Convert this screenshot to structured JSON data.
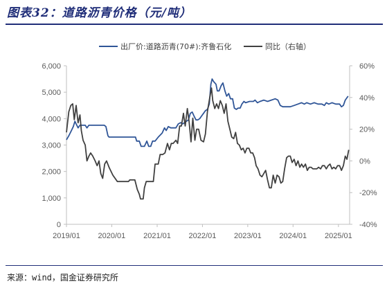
{
  "header": {
    "title": "图表32：道路沥青价格（元/吨）"
  },
  "footer": {
    "source": "来源：wind，国金证券研究所"
  },
  "colors": {
    "price": "#2f5597",
    "yoy": "#404040",
    "rule": "#1f2d78"
  },
  "chart_data": {
    "type": "line",
    "title": "图表32：道路沥青价格（元/吨）",
    "x_ticks": [
      "2019/01",
      "2020/01",
      "2021/01",
      "2022/01",
      "2023/01",
      "2024/01",
      "2025/01"
    ],
    "x_range": [
      "2019-01",
      "2025-04"
    ],
    "y_left": {
      "ticks": [
        "0",
        "1,000",
        "2,000",
        "3,000",
        "4,000",
        "5,000",
        "6,000"
      ],
      "range": [
        0,
        6000
      ]
    },
    "y_right": {
      "ticks": [
        "-40%",
        "-20%",
        "0%",
        "20%",
        "40%",
        "60%"
      ],
      "range": [
        -40,
        60
      ]
    },
    "legend_position": "top",
    "grid": false,
    "series": [
      {
        "name": "出厂价:道路沥青(70#):齐鲁石化",
        "axis": "left",
        "points": [
          [
            "2019-01-01",
            3200
          ],
          [
            "2019-01-20",
            3350
          ],
          [
            "2019-02-10",
            3550
          ],
          [
            "2019-02-25",
            3700
          ],
          [
            "2019-03-10",
            3900
          ],
          [
            "2019-03-20",
            3800
          ],
          [
            "2019-04-05",
            3650
          ],
          [
            "2019-04-20",
            3750
          ],
          [
            "2019-05-10",
            3750
          ],
          [
            "2019-06-01",
            3750
          ],
          [
            "2019-06-15",
            3650
          ],
          [
            "2019-07-01",
            3750
          ],
          [
            "2019-08-01",
            3750
          ],
          [
            "2019-09-01",
            3750
          ],
          [
            "2019-10-01",
            3750
          ],
          [
            "2019-11-01",
            3750
          ],
          [
            "2019-11-15",
            3700
          ],
          [
            "2019-12-01",
            3350
          ],
          [
            "2019-12-10",
            3300
          ],
          [
            "2020-01-15",
            3300
          ],
          [
            "2020-02-15",
            3300
          ],
          [
            "2020-03-15",
            3300
          ],
          [
            "2020-04-15",
            3300
          ],
          [
            "2020-05-15",
            3300
          ],
          [
            "2020-06-15",
            3300
          ],
          [
            "2020-07-10",
            3300
          ],
          [
            "2020-07-20",
            3150
          ],
          [
            "2020-08-10",
            3150
          ],
          [
            "2020-08-25",
            2950
          ],
          [
            "2020-09-20",
            2950
          ],
          [
            "2020-10-10",
            3150
          ],
          [
            "2020-10-25",
            2950
          ],
          [
            "2020-11-10",
            2950
          ],
          [
            "2020-11-25",
            3150
          ],
          [
            "2020-12-15",
            3150
          ],
          [
            "2021-01-10",
            3300
          ],
          [
            "2021-02-10",
            3450
          ],
          [
            "2021-03-01",
            3650
          ],
          [
            "2021-03-15",
            3550
          ],
          [
            "2021-04-01",
            3700
          ],
          [
            "2021-04-20",
            3650
          ],
          [
            "2021-05-10",
            3650
          ],
          [
            "2021-06-01",
            3650
          ],
          [
            "2021-06-20",
            3800
          ],
          [
            "2021-07-10",
            3850
          ],
          [
            "2021-07-25",
            3800
          ],
          [
            "2021-08-10",
            3850
          ],
          [
            "2021-08-25",
            3900
          ],
          [
            "2021-09-10",
            3950
          ],
          [
            "2021-09-25",
            4200
          ],
          [
            "2021-10-10",
            4250
          ],
          [
            "2021-10-25",
            4100
          ],
          [
            "2021-11-10",
            3950
          ],
          [
            "2021-11-25",
            3950
          ],
          [
            "2021-12-10",
            4000
          ],
          [
            "2021-12-25",
            4100
          ],
          [
            "2022-01-10",
            4200
          ],
          [
            "2022-01-25",
            4300
          ],
          [
            "2022-02-10",
            4350
          ],
          [
            "2022-02-25",
            4550
          ],
          [
            "2022-03-10",
            5300
          ],
          [
            "2022-03-20",
            5500
          ],
          [
            "2022-04-01",
            5400
          ],
          [
            "2022-04-20",
            5300
          ],
          [
            "2022-05-01",
            5050
          ],
          [
            "2022-05-15",
            5050
          ],
          [
            "2022-06-01",
            5250
          ],
          [
            "2022-06-15",
            5350
          ],
          [
            "2022-07-01",
            5050
          ],
          [
            "2022-07-15",
            4850
          ],
          [
            "2022-08-01",
            4950
          ],
          [
            "2022-08-15",
            4750
          ],
          [
            "2022-09-01",
            4750
          ],
          [
            "2022-09-15",
            4400
          ],
          [
            "2022-10-01",
            4350
          ],
          [
            "2022-10-15",
            4400
          ],
          [
            "2022-11-01",
            4400
          ],
          [
            "2022-11-15",
            4550
          ],
          [
            "2022-12-01",
            4650
          ],
          [
            "2022-12-15",
            4600
          ],
          [
            "2023-01-15",
            4650
          ],
          [
            "2023-02-15",
            4650
          ],
          [
            "2023-03-01",
            4700
          ],
          [
            "2023-03-20",
            4600
          ],
          [
            "2023-04-10",
            4650
          ],
          [
            "2023-05-10",
            4700
          ],
          [
            "2023-06-10",
            4650
          ],
          [
            "2023-07-10",
            4700
          ],
          [
            "2023-08-10",
            4750
          ],
          [
            "2023-09-01",
            4700
          ],
          [
            "2023-09-20",
            4500
          ],
          [
            "2023-10-10",
            4450
          ],
          [
            "2023-11-10",
            4450
          ],
          [
            "2023-12-10",
            4450
          ],
          [
            "2024-01-10",
            4500
          ],
          [
            "2024-02-10",
            4550
          ],
          [
            "2024-03-10",
            4600
          ],
          [
            "2024-04-01",
            4550
          ],
          [
            "2024-04-20",
            4600
          ],
          [
            "2024-05-20",
            4550
          ],
          [
            "2024-06-20",
            4600
          ],
          [
            "2024-07-20",
            4550
          ],
          [
            "2024-08-20",
            4550
          ],
          [
            "2024-09-10",
            4500
          ],
          [
            "2024-09-25",
            4600
          ],
          [
            "2024-10-15",
            4550
          ],
          [
            "2024-11-10",
            4600
          ],
          [
            "2024-12-10",
            4550
          ],
          [
            "2025-01-10",
            4550
          ],
          [
            "2025-01-25",
            4450
          ],
          [
            "2025-02-10",
            4500
          ],
          [
            "2025-02-25",
            4700
          ],
          [
            "2025-03-20",
            4850
          ]
        ]
      },
      {
        "name": "同比（右轴）",
        "axis": "right",
        "points": [
          [
            "2019-01-01",
            18
          ],
          [
            "2019-01-20",
            31
          ],
          [
            "2019-02-05",
            35
          ],
          [
            "2019-02-20",
            36
          ],
          [
            "2019-03-05",
            26
          ],
          [
            "2019-03-20",
            35
          ],
          [
            "2019-04-05",
            24
          ],
          [
            "2019-04-20",
            29
          ],
          [
            "2019-05-01",
            19
          ],
          [
            "2019-05-15",
            13
          ],
          [
            "2019-06-01",
            10
          ],
          [
            "2019-06-15",
            0
          ],
          [
            "2019-07-01",
            3
          ],
          [
            "2019-07-15",
            5
          ],
          [
            "2019-08-01",
            3
          ],
          [
            "2019-08-20",
            0
          ],
          [
            "2019-09-05",
            -3
          ],
          [
            "2019-09-20",
            0
          ],
          [
            "2019-10-05",
            -8
          ],
          [
            "2019-10-20",
            -11
          ],
          [
            "2019-11-05",
            -2
          ],
          [
            "2019-11-20",
            0
          ],
          [
            "2019-12-10",
            -4
          ],
          [
            "2020-01-10",
            -9
          ],
          [
            "2020-02-15",
            -13
          ],
          [
            "2020-03-15",
            -13
          ],
          [
            "2020-04-15",
            -13
          ],
          [
            "2020-05-15",
            -13
          ],
          [
            "2020-05-25",
            -12
          ],
          [
            "2020-06-15",
            -12
          ],
          [
            "2020-07-05",
            -12
          ],
          [
            "2020-07-25",
            -18
          ],
          [
            "2020-08-10",
            -21
          ],
          [
            "2020-08-20",
            -24
          ],
          [
            "2020-09-10",
            -24
          ],
          [
            "2020-09-20",
            -17
          ],
          [
            "2020-10-05",
            -13
          ],
          [
            "2020-11-01",
            -13
          ],
          [
            "2020-12-01",
            -13
          ],
          [
            "2020-12-15",
            -2
          ],
          [
            "2021-01-10",
            -2
          ],
          [
            "2021-01-25",
            4
          ],
          [
            "2021-02-15",
            4
          ],
          [
            "2021-03-05",
            5
          ],
          [
            "2021-03-25",
            11
          ],
          [
            "2021-04-10",
            7
          ],
          [
            "2021-04-25",
            11
          ],
          [
            "2021-05-10",
            11
          ],
          [
            "2021-06-01",
            13
          ],
          [
            "2021-06-15",
            11
          ],
          [
            "2021-07-01",
            22
          ],
          [
            "2021-07-15",
            22
          ],
          [
            "2021-08-01",
            30
          ],
          [
            "2021-08-15",
            22
          ],
          [
            "2021-09-01",
            33
          ],
          [
            "2021-09-15",
            25
          ],
          [
            "2021-10-01",
            12
          ],
          [
            "2021-10-15",
            27
          ],
          [
            "2021-11-01",
            13
          ],
          [
            "2021-11-15",
            20
          ],
          [
            "2021-12-01",
            20
          ],
          [
            "2021-12-20",
            13
          ],
          [
            "2022-01-10",
            12
          ],
          [
            "2022-01-25",
            17
          ],
          [
            "2022-02-10",
            31
          ],
          [
            "2022-03-01",
            40
          ],
          [
            "2022-03-15",
            46
          ],
          [
            "2022-03-25",
            38
          ],
          [
            "2022-04-10",
            33
          ],
          [
            "2022-04-25",
            36
          ],
          [
            "2022-05-10",
            33
          ],
          [
            "2022-05-25",
            38
          ],
          [
            "2022-06-10",
            35
          ],
          [
            "2022-06-25",
            30
          ],
          [
            "2022-07-10",
            36
          ],
          [
            "2022-07-25",
            25
          ],
          [
            "2022-08-10",
            20
          ],
          [
            "2022-08-25",
            15
          ],
          [
            "2022-09-10",
            14
          ],
          [
            "2022-09-25",
            18
          ],
          [
            "2022-10-10",
            11
          ],
          [
            "2022-10-25",
            10
          ],
          [
            "2022-11-10",
            7
          ],
          [
            "2022-11-25",
            8
          ],
          [
            "2022-12-10",
            5
          ],
          [
            "2022-12-25",
            8
          ],
          [
            "2023-01-10",
            8
          ],
          [
            "2023-01-25",
            5
          ],
          [
            "2023-02-10",
            5
          ],
          [
            "2023-02-25",
            2
          ],
          [
            "2023-03-10",
            -3
          ],
          [
            "2023-03-25",
            -5
          ],
          [
            "2023-04-10",
            -9
          ],
          [
            "2023-04-25",
            -10
          ],
          [
            "2023-05-10",
            -8
          ],
          [
            "2023-05-25",
            -6
          ],
          [
            "2023-06-10",
            -12
          ],
          [
            "2023-06-25",
            -17
          ],
          [
            "2023-07-10",
            -17
          ],
          [
            "2023-07-25",
            -9
          ],
          [
            "2023-08-10",
            -14
          ],
          [
            "2023-08-25",
            -9
          ],
          [
            "2023-09-10",
            -10
          ],
          [
            "2023-09-25",
            -14
          ],
          [
            "2023-10-10",
            -13
          ],
          [
            "2023-10-25",
            -5
          ],
          [
            "2023-11-10",
            2
          ],
          [
            "2023-11-25",
            3
          ],
          [
            "2023-12-10",
            3
          ],
          [
            "2023-12-25",
            -1
          ],
          [
            "2024-01-10",
            1
          ],
          [
            "2024-01-25",
            -3
          ],
          [
            "2024-02-10",
            0
          ],
          [
            "2024-02-25",
            -4
          ],
          [
            "2024-03-10",
            -2
          ],
          [
            "2024-03-25",
            -4
          ],
          [
            "2024-04-10",
            -2
          ],
          [
            "2024-04-25",
            -6
          ],
          [
            "2024-05-10",
            -4
          ],
          [
            "2024-05-25",
            -4
          ],
          [
            "2024-06-10",
            -5
          ],
          [
            "2024-06-25",
            -5
          ],
          [
            "2024-07-10",
            -5
          ],
          [
            "2024-07-25",
            -4
          ],
          [
            "2024-08-10",
            -5
          ],
          [
            "2024-08-25",
            -3
          ],
          [
            "2024-09-10",
            -3
          ],
          [
            "2024-09-25",
            -5
          ],
          [
            "2024-10-10",
            -3
          ],
          [
            "2024-10-25",
            -2
          ],
          [
            "2024-11-10",
            -5
          ],
          [
            "2024-11-25",
            -4
          ],
          [
            "2024-12-10",
            -5
          ],
          [
            "2024-12-25",
            -3
          ],
          [
            "2025-01-10",
            -3
          ],
          [
            "2025-01-25",
            -6
          ],
          [
            "2025-02-10",
            -3
          ],
          [
            "2025-02-25",
            3
          ],
          [
            "2025-03-10",
            1
          ],
          [
            "2025-03-25",
            7
          ]
        ]
      }
    ]
  }
}
